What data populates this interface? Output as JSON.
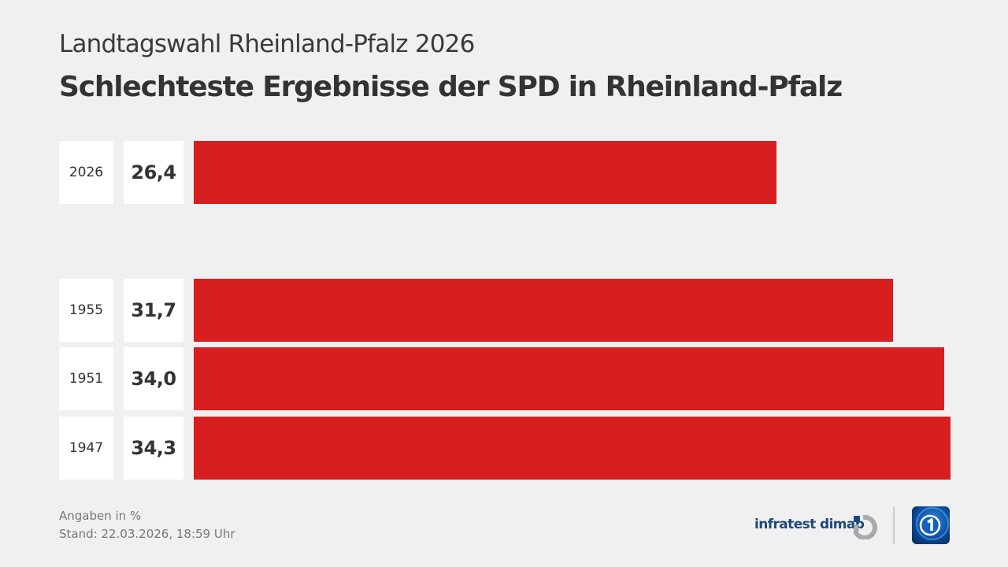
{
  "header": {
    "subtitle": "Landtagswahl Rheinland-Pfalz 2026",
    "title": "Schlechteste Ergebnisse der SPD in Rheinland-Pfalz"
  },
  "chart_data": {
    "type": "bar",
    "orientation": "horizontal",
    "title": "Schlechteste Ergebnisse der SPD in Rheinland-Pfalz",
    "subtitle": "Landtagswahl Rheinland-Pfalz 2026",
    "categories": [
      "2026",
      "1955",
      "1951",
      "1947"
    ],
    "values": [
      26.4,
      31.7,
      34.0,
      34.3
    ],
    "value_labels": [
      "26,4",
      "31,7",
      "34,0",
      "34,3"
    ],
    "unit": "%",
    "bar_color": "#d71f1f",
    "xlabel": "",
    "ylabel": "",
    "grid": false,
    "legend": "none"
  },
  "footer": {
    "note": "Angaben in %",
    "timestamp": "Stand:  22.03.2026, 18:59 Uhr",
    "source_logo": "infratest dimap",
    "source_icon": "infratest-dimap-logo-icon",
    "broadcaster_icon": "tagesschau-logo-icon"
  }
}
